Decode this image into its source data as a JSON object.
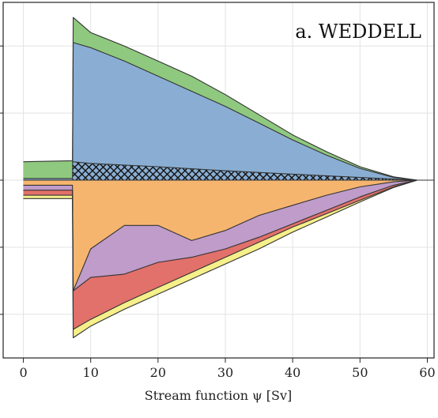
{
  "chart_data": {
    "type": "area",
    "title": "a. WEDDELL",
    "xlabel": "Stream function ψ [Sv]",
    "ylabel": "",
    "xlim": [
      -3,
      61
    ],
    "ylim": [
      -5.3,
      5.3
    ],
    "x_ticks": [
      0,
      10,
      20,
      30,
      40,
      50,
      60
    ],
    "y_ticks": [
      -4,
      -2,
      0,
      2,
      4
    ],
    "y_tick_labels_visible": false,
    "grid": true,
    "legend": "none",
    "colors": {
      "green": "#8fc97f",
      "blue": "#8aaed3",
      "orange": "#f6b56f",
      "purple": "#bf9cc9",
      "red": "#e2706b",
      "yellow": "#f6f08a",
      "pink": "#e4a0b3",
      "edge": "#333333",
      "grid": "#e3e3e3"
    },
    "series": [
      {
        "color": "green",
        "side": "upper",
        "x": [
          0,
          7.3,
          7.4,
          10,
          15,
          20,
          25,
          30,
          35,
          40,
          45,
          50,
          55,
          58.5
        ],
        "values": [
          0.55,
          0.58,
          4.85,
          4.4,
          4.0,
          3.55,
          3.1,
          2.55,
          1.95,
          1.35,
          0.85,
          0.4,
          0.1,
          0
        ]
      },
      {
        "color": "blue",
        "side": "upper",
        "x": [
          0,
          7.3,
          7.4,
          10,
          15,
          20,
          25,
          30,
          35,
          40,
          45,
          50,
          55,
          58.5
        ],
        "values": [
          0.05,
          0.05,
          4.1,
          3.95,
          3.55,
          3.1,
          2.65,
          2.2,
          1.7,
          1.2,
          0.75,
          0.35,
          0.08,
          0
        ]
      },
      {
        "color": "hatched",
        "side": "upper",
        "x": [
          7.3,
          10,
          20,
          30,
          40,
          50,
          58.5
        ],
        "values": [
          0.55,
          0.5,
          0.4,
          0.28,
          0.18,
          0.08,
          0
        ]
      },
      {
        "color": "orange",
        "side": "lower",
        "x": [
          0,
          7.3,
          7.4,
          10,
          15,
          20,
          25,
          30,
          35,
          40,
          45,
          50,
          55,
          58.5
        ],
        "values": [
          -0.15,
          -0.15,
          -3.3,
          -2.05,
          -1.35,
          -1.35,
          -1.8,
          -1.5,
          -1.05,
          -0.75,
          -0.45,
          -0.2,
          -0.05,
          0
        ]
      },
      {
        "color": "purple",
        "side": "lower",
        "x": [
          0,
          7.3,
          7.4,
          10,
          15,
          20,
          25,
          30,
          35,
          40,
          45,
          50,
          55,
          58.5
        ],
        "values": [
          -0.3,
          -0.3,
          -3.3,
          -2.9,
          -2.8,
          -2.45,
          -2.3,
          -2.05,
          -1.7,
          -1.3,
          -0.9,
          -0.5,
          -0.15,
          0
        ]
      },
      {
        "color": "red",
        "side": "lower",
        "x": [
          0,
          7.3,
          7.4,
          10,
          15,
          20,
          25,
          30,
          35,
          40,
          45,
          50,
          55,
          58.5
        ],
        "values": [
          -0.45,
          -0.45,
          -4.45,
          -4.15,
          -3.65,
          -3.2,
          -2.75,
          -2.3,
          -1.85,
          -1.4,
          -1.0,
          -0.6,
          -0.2,
          0
        ]
      },
      {
        "color": "yellow",
        "side": "lower",
        "x": [
          0,
          7.3,
          7.4,
          10,
          15,
          20,
          25,
          30,
          35,
          40,
          45,
          50,
          55,
          58.5
        ],
        "values": [
          -0.55,
          -0.55,
          -4.7,
          -4.35,
          -3.85,
          -3.4,
          -2.95,
          -2.5,
          -2.05,
          -1.55,
          -1.1,
          -0.65,
          -0.22,
          0
        ]
      }
    ]
  }
}
